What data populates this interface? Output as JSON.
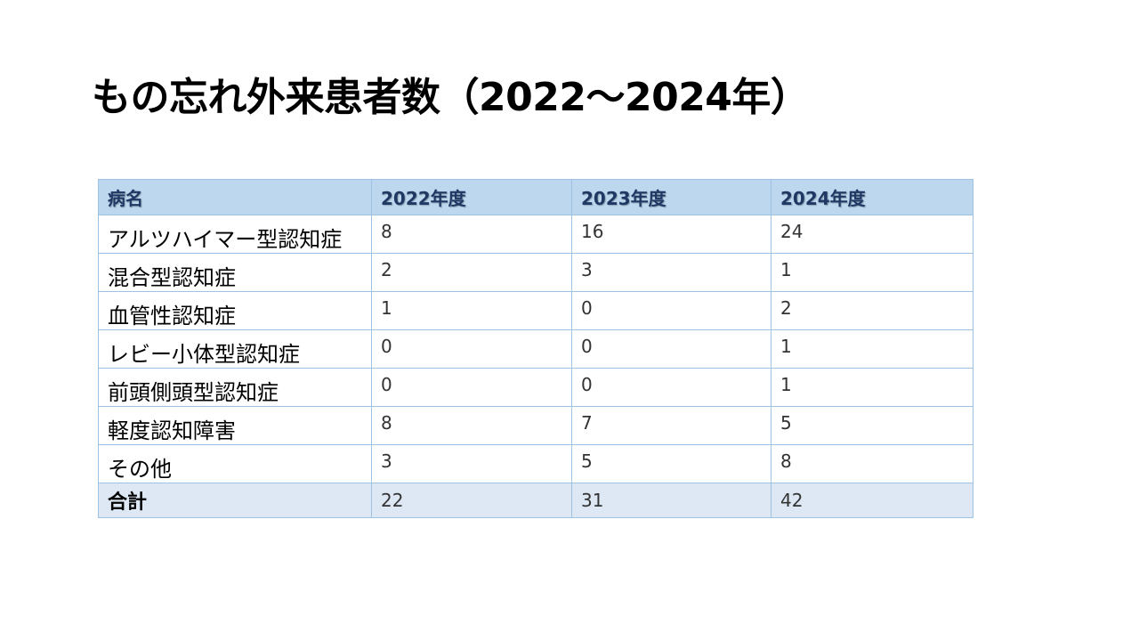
{
  "title": "もの忘れ外来患者数（2022～2024年）",
  "table": {
    "headers": [
      "病名",
      "2022年度",
      "2023年度",
      "2024年度"
    ],
    "rows": [
      {
        "name": "アルツハイマー型認知症",
        "values": [
          "8",
          "16",
          "24"
        ]
      },
      {
        "name": "混合型認知症",
        "values": [
          "2",
          "3",
          "1"
        ]
      },
      {
        "name": "血管性認知症",
        "values": [
          "1",
          "0",
          "2"
        ]
      },
      {
        "name": "レビー小体型認知症",
        "values": [
          "0",
          "0",
          "1"
        ]
      },
      {
        "name": "前頭側頭型認知症",
        "values": [
          "0",
          "0",
          "1"
        ]
      },
      {
        "name": "軽度認知障害",
        "values": [
          "8",
          "7",
          "5"
        ]
      },
      {
        "name": "その他",
        "values": [
          "3",
          "5",
          "8"
        ]
      }
    ],
    "total": {
      "label": "合計",
      "values": [
        "22",
        "31",
        "42"
      ]
    }
  },
  "colors": {
    "header_bg": "#bdd7ee",
    "header_text": "#1f3864",
    "total_bg": "#dde8f4",
    "border": "#9ec2e4"
  }
}
